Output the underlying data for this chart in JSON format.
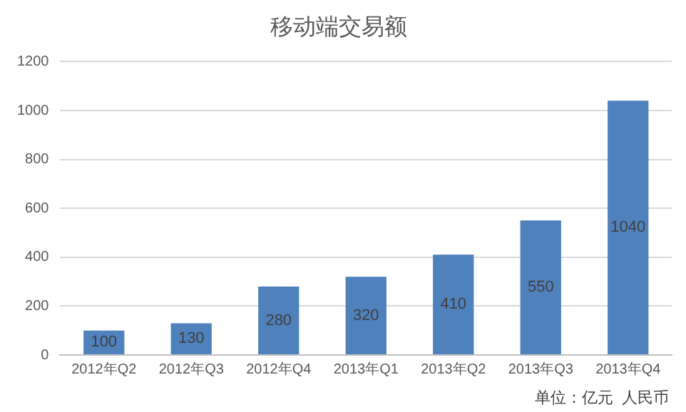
{
  "chart_data": {
    "type": "bar",
    "title": "移动端交易额",
    "categories": [
      "2012年Q2",
      "2012年Q3",
      "2012年Q4",
      "2013年Q1",
      "2013年Q2",
      "2013年Q3",
      "2013年Q4"
    ],
    "values": [
      100,
      130,
      280,
      320,
      410,
      550,
      1040
    ],
    "color": "#4f81bd",
    "ylim": [
      0,
      1200
    ],
    "yticks": [
      0,
      200,
      400,
      600,
      800,
      1000,
      1200
    ],
    "grid": "y",
    "data_labels": true,
    "annotations": [
      "单位：亿元  人民币"
    ]
  }
}
